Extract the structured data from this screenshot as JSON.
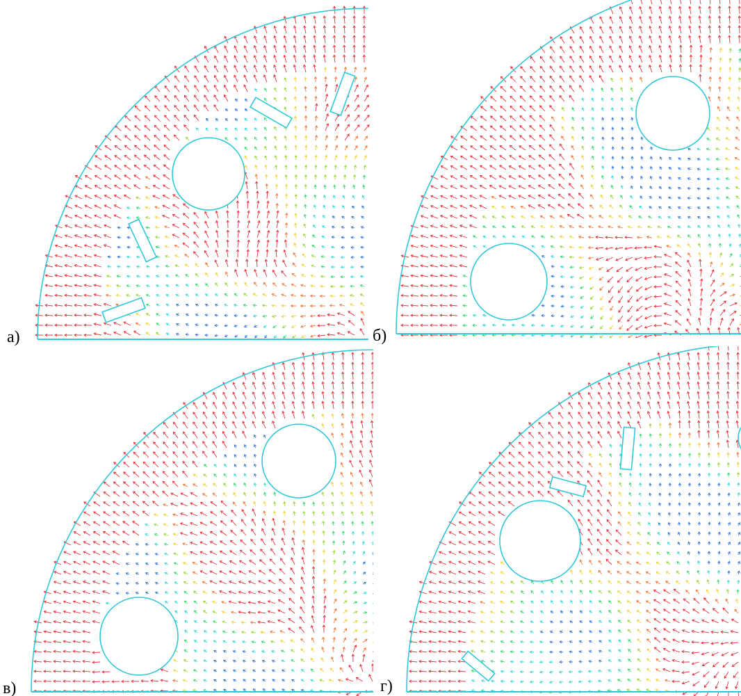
{
  "panels": [
    {
      "label": "а)"
    },
    {
      "label": "б)"
    },
    {
      "label": "в)"
    },
    {
      "label": "г)"
    }
  ]
}
